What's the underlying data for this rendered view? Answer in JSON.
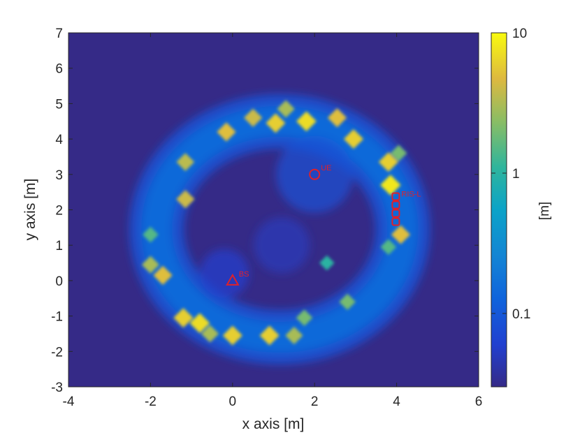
{
  "chart_data": {
    "type": "heatmap",
    "title": "",
    "xlabel": "x axis [m]",
    "ylabel": "y axis [m]",
    "xlim": [
      -4,
      6
    ],
    "ylim": [
      -3,
      7
    ],
    "xticks": [
      -4,
      -2,
      0,
      2,
      4,
      6
    ],
    "yticks": [
      -3,
      -2,
      -1,
      0,
      1,
      2,
      3,
      4,
      5,
      6,
      7
    ],
    "xtick_labels": [
      "-4",
      "-2",
      "0",
      "2",
      "4",
      "6"
    ],
    "ytick_labels": [
      "-3",
      "-2",
      "-1",
      "0",
      "1",
      "2",
      "3",
      "4",
      "5",
      "6",
      "7"
    ],
    "grid": false,
    "colorbar": {
      "scale": "log",
      "range": [
        0.03,
        10
      ],
      "ticks": [
        0.1,
        1,
        10
      ],
      "tick_labels": [
        "0.1",
        "1",
        "10"
      ],
      "label": "[m]",
      "colormap": "parula"
    },
    "background_value": 0.03,
    "ring": {
      "center": [
        1.15,
        1.45
      ],
      "radius_x": 3.0,
      "radius_y": 3.05,
      "typical_value": 0.15
    },
    "hotspots": [
      {
        "x": -0.8,
        "y": -1.2,
        "value": 7
      },
      {
        "x": -1.2,
        "y": -1.05,
        "value": 6
      },
      {
        "x": -1.7,
        "y": 0.15,
        "value": 5
      },
      {
        "x": -2.0,
        "y": 0.45,
        "value": 3
      },
      {
        "x": -2.0,
        "y": 1.3,
        "value": 1.5
      },
      {
        "x": -1.15,
        "y": 2.3,
        "value": 4
      },
      {
        "x": -1.15,
        "y": 3.35,
        "value": 3.5
      },
      {
        "x": -0.15,
        "y": 4.2,
        "value": 5
      },
      {
        "x": 0.5,
        "y": 4.6,
        "value": 4
      },
      {
        "x": 1.05,
        "y": 4.45,
        "value": 6
      },
      {
        "x": 1.3,
        "y": 4.85,
        "value": 3
      },
      {
        "x": 1.8,
        "y": 4.5,
        "value": 7
      },
      {
        "x": 2.55,
        "y": 4.6,
        "value": 5
      },
      {
        "x": 2.95,
        "y": 4.0,
        "value": 6
      },
      {
        "x": 3.8,
        "y": 3.35,
        "value": 6
      },
      {
        "x": 3.85,
        "y": 2.7,
        "value": 8
      },
      {
        "x": 4.1,
        "y": 1.3,
        "value": 5
      },
      {
        "x": 3.8,
        "y": 0.95,
        "value": 1.5
      },
      {
        "x": 2.8,
        "y": -0.6,
        "value": 2
      },
      {
        "x": 1.75,
        "y": -1.05,
        "value": 2
      },
      {
        "x": 1.5,
        "y": -1.55,
        "value": 3
      },
      {
        "x": 0.9,
        "y": -1.55,
        "value": 6
      },
      {
        "x": 0.0,
        "y": -1.55,
        "value": 6
      },
      {
        "x": -0.55,
        "y": -1.5,
        "value": 3
      },
      {
        "x": 4.05,
        "y": 3.6,
        "value": 2
      },
      {
        "x": 2.3,
        "y": 0.5,
        "value": 1
      }
    ],
    "markers": [
      {
        "label": "BS",
        "shape": "triangle",
        "x": 0,
        "y": 0,
        "color": "#e0202a"
      },
      {
        "label": "UE",
        "shape": "circle",
        "x": 2,
        "y": 3,
        "color": "#e0202a"
      },
      {
        "label": "RIS-L",
        "shape": "rect-array",
        "x": 3.98,
        "y": 2.0,
        "color": "#e0202a"
      }
    ]
  },
  "colors": {
    "background_field": "#352a87",
    "marker": "#e0202a",
    "axis": "#262626"
  }
}
